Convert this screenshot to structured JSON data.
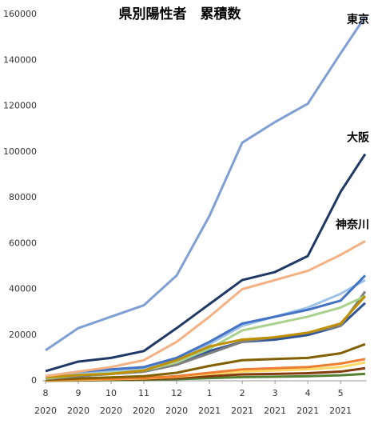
{
  "chart_data": {
    "type": "line",
    "title": "県別陽性者　累積数",
    "x": [
      0,
      1,
      2,
      3,
      4,
      5,
      6,
      7,
      8,
      9,
      9.75
    ],
    "xlim": [
      0,
      9.8
    ],
    "xticks": [
      {
        "value": 0,
        "label": "8"
      },
      {
        "value": 1,
        "label": "9"
      },
      {
        "value": 2,
        "label": "10"
      },
      {
        "value": 3,
        "label": "11"
      },
      {
        "value": 4,
        "label": "12"
      },
      {
        "value": 5,
        "label": "1"
      },
      {
        "value": 6,
        "label": "2"
      },
      {
        "value": 7,
        "label": "3"
      },
      {
        "value": 8,
        "label": "4"
      },
      {
        "value": 9,
        "label": "5"
      }
    ],
    "xtick_years": [
      "2020",
      "2020",
      "2020",
      "2020",
      "2020",
      "2021",
      "2021",
      "2021",
      "2021",
      "2021"
    ],
    "ylim": [
      0,
      160000
    ],
    "yticks": [
      0,
      20000,
      40000,
      60000,
      80000,
      100000,
      120000,
      140000,
      160000
    ],
    "grid": false,
    "series": [
      {
        "color": "#548235",
        "values": [
          50,
          150,
          300,
          400,
          700,
          1200,
          1600,
          1800,
          2000,
          2400,
          3000
        ]
      },
      {
        "color": "#843c0c",
        "values": [
          100,
          300,
          500,
          700,
          1200,
          2000,
          2800,
          3000,
          3300,
          4000,
          5500
        ]
      },
      {
        "color": "#ffd966",
        "values": [
          200,
          400,
          700,
          1000,
          1800,
          3000,
          4000,
          4500,
          5000,
          6000,
          8000
        ]
      },
      {
        "color": "#ed7d31",
        "values": [
          300,
          600,
          900,
          1200,
          2000,
          3500,
          5000,
          5500,
          6000,
          7500,
          9500
        ]
      },
      {
        "color": "#806000",
        "values": [
          500,
          1000,
          1500,
          2000,
          3500,
          6500,
          9000,
          9500,
          10000,
          12000,
          16000
        ]
      },
      {
        "color": "#2f5597",
        "values": [
          1000,
          2000,
          3000,
          4000,
          7000,
          13000,
          17000,
          18000,
          20000,
          24000,
          34000
        ]
      },
      {
        "color": "#7f7f7f",
        "values": [
          800,
          2000,
          3000,
          4000,
          7000,
          12000,
          17000,
          19000,
          21000,
          24000,
          39000
        ]
      },
      {
        "color": "#a9d18e",
        "values": [
          1000,
          2500,
          3500,
          4500,
          8000,
          14000,
          22000,
          25000,
          28000,
          32000,
          37000
        ]
      },
      {
        "color": "#9dc3e6",
        "values": [
          1500,
          3500,
          4500,
          5500,
          9000,
          16000,
          24000,
          28000,
          32000,
          38000,
          44000
        ]
      },
      {
        "color": "#4472c4",
        "values": [
          2000,
          4000,
          5000,
          6000,
          10000,
          17000,
          25000,
          28000,
          31000,
          35000,
          46000
        ]
      },
      {
        "color": "#bf9000",
        "values": [
          1500,
          2500,
          3000,
          4500,
          9000,
          15000,
          18000,
          19000,
          21000,
          25000,
          37000
        ]
      },
      {
        "name": "神奈川",
        "color": "#f4b183",
        "values": [
          2000,
          4000,
          6000,
          9000,
          17000,
          28000,
          40000,
          44000,
          48000,
          55000,
          61000
        ]
      },
      {
        "name": "大阪",
        "color": "#1f3864",
        "values": [
          4200,
          8400,
          10000,
          13000,
          23000,
          33500,
          44000,
          47500,
          54500,
          82500,
          99000
        ]
      },
      {
        "name": "東京",
        "color": "#7f9fd4",
        "values": [
          13300,
          23000,
          28000,
          33000,
          46000,
          72000,
          104000,
          113000,
          121000,
          143000,
          159000
        ]
      }
    ]
  }
}
